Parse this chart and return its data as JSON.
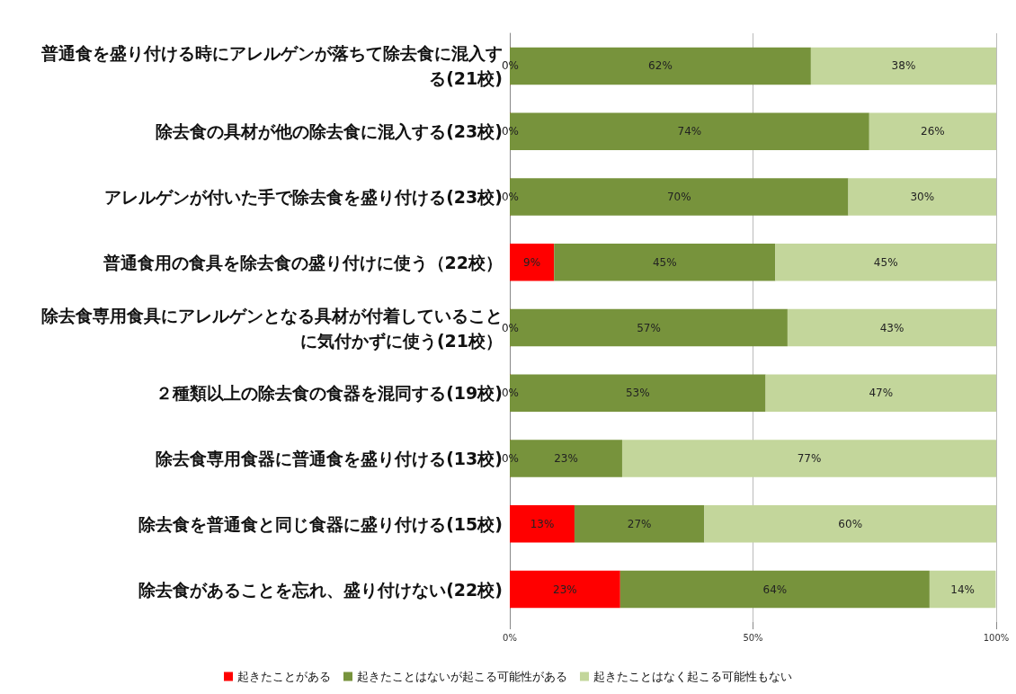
{
  "chart_data": {
    "type": "bar",
    "orientation": "horizontal",
    "stacked": true,
    "categories": [
      "普通食を盛り付ける時にアレルゲンが落ちて除去食に混入する(21校)",
      "除去食の具材が他の除去食に混入する(23校)",
      "アレルゲンが付いた手で除去食を盛り付ける(23校)",
      "普通食用の食具を除去食の盛り付けに使う（22校）",
      "除去食専用食具にアレルゲンとなる具材が付着していることに気付かずに使う(21校）",
      "２種類以上の除去食の食器を混同する(19校)",
      "除去食専用食器に普通食を盛り付ける(13校)",
      "除去食を普通食と同じ食器に盛り付ける(15校)",
      "除去食があることを忘れ、盛り付けない(22校)"
    ],
    "series": [
      {
        "name": "起きたことがある",
        "color": "#ff0000",
        "values": [
          0,
          0,
          0,
          9.1,
          0,
          0,
          0,
          13.3,
          22.7
        ],
        "value_labels": [
          "0%",
          "0%",
          "0%",
          "9%",
          "0%",
          "0%",
          "0%",
          "13%",
          "23%"
        ]
      },
      {
        "name": "起きたことはないが起こる可能性がある",
        "color": "#77933c",
        "values": [
          61.9,
          73.9,
          69.6,
          45.5,
          57.1,
          52.6,
          23.1,
          26.7,
          63.6
        ],
        "value_labels": [
          "62%",
          "74%",
          "70%",
          "45%",
          "57%",
          "53%",
          "23%",
          "27%",
          "64%"
        ]
      },
      {
        "name": "起きたことはなく起こる可能性もない",
        "color": "#c3d69b",
        "values": [
          38.1,
          26.1,
          30.4,
          45.5,
          42.9,
          47.4,
          76.9,
          60.0,
          13.6
        ],
        "value_labels": [
          "38%",
          "26%",
          "30%",
          "45%",
          "43%",
          "47%",
          "77%",
          "60%",
          "14%"
        ]
      }
    ],
    "xlim": [
      0,
      100
    ],
    "xticks": [
      {
        "value": 0,
        "label": "0%"
      },
      {
        "value": 50,
        "label": "50%"
      },
      {
        "value": 100,
        "label": "100%"
      }
    ],
    "grid": "x",
    "legend": "bottom"
  }
}
